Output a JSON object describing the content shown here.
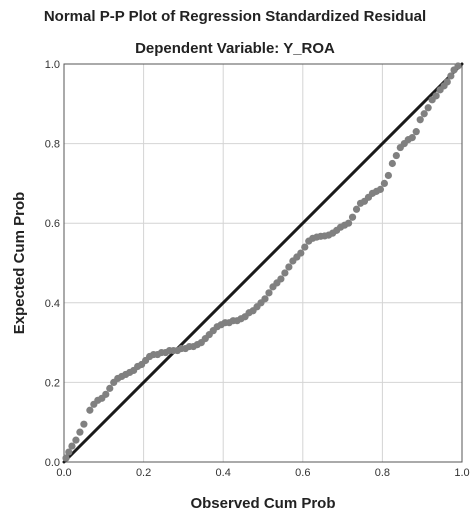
{
  "chart_data": {
    "type": "scatter",
    "title": "Normal P-P Plot of Regression Standardized Residual",
    "subtitle": "Dependent Variable: Y_ROA",
    "xlabel": "Observed Cum Prob",
    "ylabel": "Expected Cum Prob",
    "xlim": [
      0,
      1
    ],
    "ylim": [
      0,
      1
    ],
    "xticks": [
      "0.0",
      "0.2",
      "0.4",
      "0.6",
      "0.8",
      "1.0"
    ],
    "yticks": [
      "0.0",
      "0.2",
      "0.4",
      "0.6",
      "0.8",
      "1.0"
    ],
    "grid": true,
    "reference_line": {
      "from": [
        0,
        0
      ],
      "to": [
        1,
        1
      ],
      "color": "#1a1a1a"
    },
    "point_color": "#808080",
    "points": [
      [
        0.005,
        0.01
      ],
      [
        0.012,
        0.025
      ],
      [
        0.02,
        0.04
      ],
      [
        0.03,
        0.055
      ],
      [
        0.04,
        0.075
      ],
      [
        0.05,
        0.095
      ],
      [
        0.065,
        0.13
      ],
      [
        0.075,
        0.145
      ],
      [
        0.085,
        0.155
      ],
      [
        0.095,
        0.16
      ],
      [
        0.105,
        0.17
      ],
      [
        0.115,
        0.185
      ],
      [
        0.125,
        0.2
      ],
      [
        0.135,
        0.21
      ],
      [
        0.145,
        0.215
      ],
      [
        0.155,
        0.22
      ],
      [
        0.165,
        0.225
      ],
      [
        0.175,
        0.23
      ],
      [
        0.185,
        0.24
      ],
      [
        0.195,
        0.245
      ],
      [
        0.205,
        0.255
      ],
      [
        0.215,
        0.265
      ],
      [
        0.225,
        0.27
      ],
      [
        0.235,
        0.27
      ],
      [
        0.245,
        0.275
      ],
      [
        0.255,
        0.275
      ],
      [
        0.265,
        0.28
      ],
      [
        0.275,
        0.28
      ],
      [
        0.285,
        0.28
      ],
      [
        0.295,
        0.285
      ],
      [
        0.305,
        0.285
      ],
      [
        0.315,
        0.29
      ],
      [
        0.325,
        0.29
      ],
      [
        0.335,
        0.295
      ],
      [
        0.345,
        0.3
      ],
      [
        0.355,
        0.31
      ],
      [
        0.365,
        0.32
      ],
      [
        0.375,
        0.33
      ],
      [
        0.385,
        0.34
      ],
      [
        0.395,
        0.345
      ],
      [
        0.405,
        0.35
      ],
      [
        0.415,
        0.35
      ],
      [
        0.425,
        0.355
      ],
      [
        0.435,
        0.355
      ],
      [
        0.445,
        0.36
      ],
      [
        0.455,
        0.365
      ],
      [
        0.465,
        0.375
      ],
      [
        0.475,
        0.38
      ],
      [
        0.485,
        0.39
      ],
      [
        0.495,
        0.4
      ],
      [
        0.505,
        0.41
      ],
      [
        0.515,
        0.425
      ],
      [
        0.525,
        0.44
      ],
      [
        0.535,
        0.45
      ],
      [
        0.545,
        0.46
      ],
      [
        0.555,
        0.475
      ],
      [
        0.565,
        0.49
      ],
      [
        0.575,
        0.505
      ],
      [
        0.585,
        0.515
      ],
      [
        0.595,
        0.525
      ],
      [
        0.605,
        0.54
      ],
      [
        0.615,
        0.555
      ],
      [
        0.625,
        0.562
      ],
      [
        0.635,
        0.565
      ],
      [
        0.645,
        0.567
      ],
      [
        0.655,
        0.568
      ],
      [
        0.665,
        0.57
      ],
      [
        0.675,
        0.575
      ],
      [
        0.685,
        0.582
      ],
      [
        0.695,
        0.59
      ],
      [
        0.705,
        0.595
      ],
      [
        0.715,
        0.6
      ],
      [
        0.725,
        0.615
      ],
      [
        0.735,
        0.635
      ],
      [
        0.745,
        0.65
      ],
      [
        0.755,
        0.655
      ],
      [
        0.765,
        0.665
      ],
      [
        0.775,
        0.675
      ],
      [
        0.785,
        0.68
      ],
      [
        0.795,
        0.685
      ],
      [
        0.805,
        0.7
      ],
      [
        0.815,
        0.72
      ],
      [
        0.825,
        0.75
      ],
      [
        0.835,
        0.77
      ],
      [
        0.845,
        0.79
      ],
      [
        0.855,
        0.8
      ],
      [
        0.865,
        0.81
      ],
      [
        0.875,
        0.815
      ],
      [
        0.885,
        0.83
      ],
      [
        0.895,
        0.86
      ],
      [
        0.905,
        0.875
      ],
      [
        0.915,
        0.89
      ],
      [
        0.925,
        0.91
      ],
      [
        0.935,
        0.92
      ],
      [
        0.945,
        0.935
      ],
      [
        0.955,
        0.945
      ],
      [
        0.963,
        0.955
      ],
      [
        0.972,
        0.97
      ],
      [
        0.98,
        0.985
      ],
      [
        0.99,
        0.995
      ]
    ]
  }
}
